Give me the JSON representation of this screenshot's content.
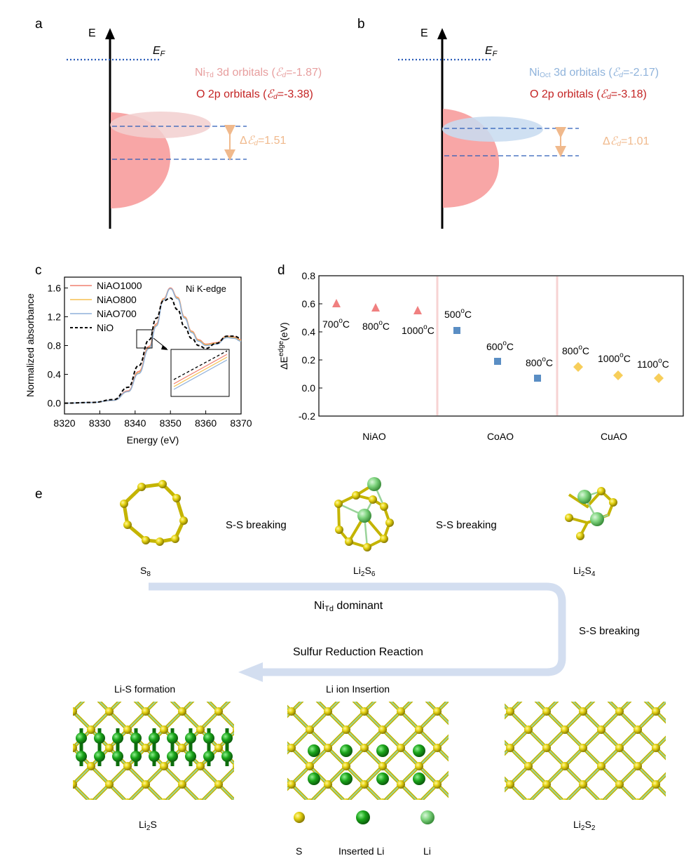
{
  "panel_a": {
    "letter": "a",
    "energy_label": "E",
    "fermi_label": "E",
    "fermi_sub": "F",
    "orb1_pre": "Ni",
    "orb1_sub": "Td",
    "orb1_post": " 3d orbitals (",
    "eps": "ℰ",
    "eps_sub": "d",
    "orb1_val": "=-1.87)",
    "orb2_pre": "O 2p orbitals (",
    "orb2_val": "=-3.38)",
    "delta_pre": "Δ",
    "delta_val": "=1.51"
  },
  "panel_b": {
    "letter": "b",
    "energy_label": "E",
    "fermi_label": "E",
    "fermi_sub": "F",
    "orb1_pre": "Ni",
    "orb1_sub": "Oct",
    "orb1_post": " 3d orbitals (",
    "eps": "ℰ",
    "eps_sub": "d",
    "orb1_val": "=-2.17)",
    "orb2_pre": "O 2p orbitals (",
    "orb2_val": "=-3.18)",
    "delta_pre": "Δ",
    "delta_val": "=1.01"
  },
  "colors": {
    "pink": "#f79c9c",
    "pink_light": "#f2cfcf",
    "blue_light": "#c8dcf0",
    "fermi": "#2a5cb8",
    "red_text": "#c42424",
    "pink_text": "#e79e9e",
    "blue_text": "#8fb3db",
    "orange": "#f0b98c",
    "ni1000": "#f08070",
    "ni800": "#f5c050",
    "ni700": "#8fb0da",
    "triangle": "#f08080",
    "square": "#5a8ec4",
    "diamond": "#f7ce5a",
    "sulfur": "#e0d010",
    "li": "#7ed47e",
    "li_inserted": "#1aa51a",
    "arrow": "#d3def0"
  },
  "chart_data": [
    {
      "panel": "c",
      "type": "line",
      "xlabel": "Energy (eV)",
      "ylabel": "Normalized absorbance",
      "xlim": [
        8320,
        8370
      ],
      "ylim": [
        -0.15,
        1.75
      ],
      "xticks": [
        8320,
        8330,
        8340,
        8350,
        8360,
        8370
      ],
      "yticks": [
        0.0,
        0.4,
        0.8,
        1.2,
        1.6
      ],
      "annotation": "Ni K-edge",
      "legend_position": "top-left",
      "series": [
        {
          "name": "NiAO1000",
          "x": [
            8320,
            8328,
            8334,
            8338,
            8341,
            8344,
            8346,
            8348,
            8350,
            8352,
            8354,
            8356,
            8358,
            8360,
            8363,
            8366,
            8368,
            8370
          ],
          "y": [
            0.0,
            0.01,
            0.04,
            0.17,
            0.44,
            0.79,
            1.1,
            1.45,
            1.6,
            1.47,
            1.2,
            1.0,
            0.88,
            0.82,
            0.84,
            0.93,
            0.92,
            0.88
          ]
        },
        {
          "name": "NiAO800",
          "x": [
            8320,
            8328,
            8334,
            8338,
            8341,
            8344,
            8346,
            8348,
            8350,
            8352,
            8354,
            8356,
            8358,
            8360,
            8363,
            8366,
            8368,
            8370
          ],
          "y": [
            0.0,
            0.01,
            0.04,
            0.16,
            0.42,
            0.77,
            1.08,
            1.44,
            1.59,
            1.46,
            1.19,
            0.99,
            0.87,
            0.81,
            0.83,
            0.92,
            0.91,
            0.87
          ]
        },
        {
          "name": "NiAO700",
          "x": [
            8320,
            8328,
            8334,
            8338,
            8341,
            8344,
            8346,
            8348,
            8350,
            8352,
            8354,
            8356,
            8358,
            8360,
            8363,
            8366,
            8368,
            8370
          ],
          "y": [
            0.0,
            0.01,
            0.04,
            0.16,
            0.41,
            0.76,
            1.07,
            1.43,
            1.59,
            1.45,
            1.18,
            0.98,
            0.86,
            0.8,
            0.82,
            0.91,
            0.9,
            0.86
          ]
        },
        {
          "name": "NiO",
          "x": [
            8320,
            8328,
            8334,
            8338,
            8341,
            8344,
            8346,
            8348,
            8350,
            8352,
            8354,
            8356,
            8358,
            8360,
            8363,
            8366,
            8368,
            8370
          ],
          "y": [
            0.0,
            0.01,
            0.05,
            0.22,
            0.52,
            0.88,
            1.18,
            1.42,
            1.46,
            1.3,
            1.06,
            0.9,
            0.8,
            0.76,
            0.83,
            0.93,
            0.93,
            0.9
          ]
        }
      ]
    },
    {
      "panel": "d",
      "type": "scatter",
      "ylabel": "ΔE",
      "ylabel_sup": "edge",
      "ylabel_unit": "(eV)",
      "ylim": [
        -0.2,
        0.8
      ],
      "yticks": [
        "-0.2",
        "0.0",
        "0.2",
        "0.4",
        "0.6",
        "0.8"
      ],
      "groups": [
        "NiAO",
        "CoAO",
        "CuAO"
      ],
      "points": [
        {
          "group": "NiAO",
          "label": "700",
          "value": 0.6,
          "marker": "triangle"
        },
        {
          "group": "NiAO",
          "label": "800",
          "value": 0.57,
          "marker": "triangle"
        },
        {
          "group": "NiAO",
          "label": "1000",
          "value": 0.55,
          "marker": "triangle"
        },
        {
          "group": "CoAO",
          "label": "500",
          "value": 0.41,
          "marker": "square"
        },
        {
          "group": "CoAO",
          "label": "600",
          "value": 0.19,
          "marker": "square"
        },
        {
          "group": "CoAO",
          "label": "800",
          "value": 0.07,
          "marker": "square"
        },
        {
          "group": "CuAO",
          "label": "800",
          "value": 0.15,
          "marker": "diamond"
        },
        {
          "group": "CuAO",
          "label": "1000",
          "value": 0.09,
          "marker": "diamond"
        },
        {
          "group": "CuAO",
          "label": "1100",
          "value": 0.07,
          "marker": "diamond"
        }
      ],
      "temp_unit_sup": "o",
      "temp_unit": "C"
    }
  ],
  "panel_c_letter": "c",
  "panel_d_letter": "d",
  "panel_e": {
    "letter": "e",
    "s8": "S",
    "s8_sub": "8",
    "li2s6_a": "Li",
    "li2s6_b": "2",
    "li2s6_c": "S",
    "li2s6_d": "6",
    "li2s4_a": "Li",
    "li2s4_b": "2",
    "li2s4_c": "S",
    "li2s4_d": "4",
    "break1": "S-S breaking",
    "break2": "S-S breaking",
    "break3": "S-S breaking",
    "dominant_pre": "Ni",
    "dominant_sub": "Td",
    "dominant_post": " dominant",
    "srr": "Sulfur Reduction Reaction",
    "lis_formation": "Li-S formation",
    "li_insertion": "Li ion Insertion",
    "li2s_a": "Li",
    "li2s_b": "2",
    "li2s_c": "S",
    "li2s2_a": "Li",
    "li2s2_b": "2",
    "li2s2_c": "S",
    "li2s2_d": "2",
    "legend_s": "S",
    "legend_inserted": "Inserted Li",
    "legend_li": "Li"
  }
}
